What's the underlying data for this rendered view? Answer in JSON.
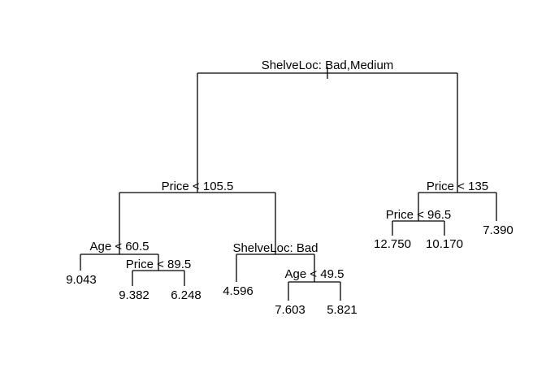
{
  "tree": {
    "root_split": "ShelveLoc: Bad,Medium",
    "left_split": "Price < 105.5",
    "left_left_split": "Age < 60.5",
    "left_left_leaf": "9.043",
    "left_left_right_split": "Price < 89.5",
    "leaf_9382": "9.382",
    "leaf_6248": "6.248",
    "left_right_split": "ShelveLoc: Bad",
    "leaf_4596": "4.596",
    "left_right_right_split": "Age < 49.5",
    "leaf_7603": "7.603",
    "leaf_5821": "5.821",
    "right_split": "Price < 135",
    "right_left_split": "Price < 96.5",
    "leaf_12750": "12.750",
    "leaf_10170": "10.170",
    "leaf_7390": "7.390"
  }
}
